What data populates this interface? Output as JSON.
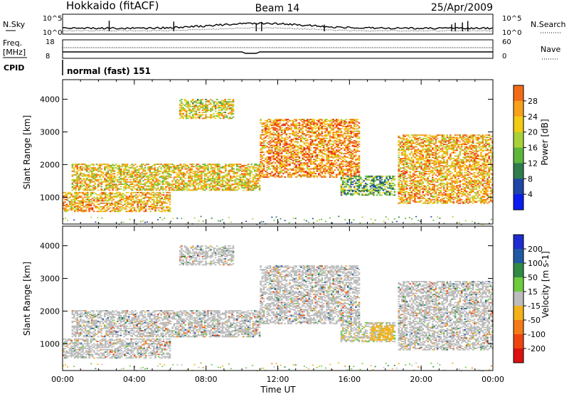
{
  "header": {
    "station": "Hokkaido (fitACF)",
    "beam": "Beam 14",
    "date": "25/Apr/2009"
  },
  "noise_panel": {
    "left_label": "N.Sky",
    "right_label": "N.Search",
    "ticks_left": [
      "10^5",
      "10^0"
    ],
    "ticks_right": [
      "10^5",
      "10^0"
    ]
  },
  "freq_panel": {
    "left_label_1": "Freq.",
    "left_label_2": "[MHz]",
    "ticks_left": [
      "18",
      "8"
    ],
    "right_label": "Nave",
    "ticks_right": [
      "60",
      "0"
    ]
  },
  "cpid_panel": {
    "left_label": "CPID",
    "mode_text": "normal (fast) 151"
  },
  "colors": {
    "power": [
      "#0b1cf0",
      "#1e46a6",
      "#2f7d4c",
      "#5fb63c",
      "#a9d23a",
      "#f2cc12",
      "#f7a11a",
      "#f46b17",
      "#e83212"
    ],
    "velocity": [
      "#1d2cd1",
      "#2059a3",
      "#2f8a44",
      "#6ccc3c",
      "#bcbcbc",
      "#f3b21b",
      "#f47b16",
      "#ef4410",
      "#dd1111"
    ]
  },
  "chart_data": [
    {
      "type": "heatmap",
      "panel": "power",
      "ylabel": "Slant Range [km]",
      "y_ticks": [
        "1000",
        "2000",
        "3000",
        "4000"
      ],
      "ylim": [
        180,
        4600
      ],
      "xlim": [
        "00:00",
        "24:00"
      ],
      "colorbar_label": "Power [dB]",
      "colorbar_ticks": [
        "4",
        "8",
        "12",
        "16",
        "20",
        "24",
        "28"
      ],
      "colorbar_range": [
        0,
        32
      ],
      "echo_regions": [
        {
          "name": "nightside low-range band",
          "t_start": 0.0,
          "t_end": 6.0,
          "r_from": 550,
          "r_to": 1150,
          "level": 22
        },
        {
          "name": "rising arc",
          "t_start": 0.5,
          "t_end": 11.0,
          "r_from": 1200,
          "r_to": 2000,
          "level": 20
        },
        {
          "name": "morning high-range patch",
          "t_start": 6.5,
          "t_end": 9.5,
          "r_from": 3400,
          "r_to": 4000,
          "level": 18
        },
        {
          "name": "daytime arc",
          "t_start": 11.0,
          "t_end": 16.5,
          "r_from": 1600,
          "r_to": 3400,
          "level": 24
        },
        {
          "name": "afternoon low patch",
          "t_start": 15.5,
          "t_end": 18.5,
          "r_from": 1050,
          "r_to": 1650,
          "level": 12
        },
        {
          "name": "evening descending band",
          "t_start": 18.7,
          "t_end": 24.0,
          "r_from": 800,
          "r_to": 2900,
          "level": 22
        }
      ]
    },
    {
      "type": "heatmap",
      "panel": "velocity",
      "ylabel": "Slant Range [km]",
      "xlabel": "Time UT",
      "y_ticks": [
        "1000",
        "2000",
        "3000",
        "4000"
      ],
      "x_ticks": [
        "00:00",
        "04:00",
        "08:00",
        "12:00",
        "16:00",
        "20:00",
        "00:00"
      ],
      "ylim": [
        180,
        4600
      ],
      "xlim": [
        "00:00",
        "24:00"
      ],
      "colorbar_label": "Velocity [m s-1]",
      "colorbar_ticks": [
        "200",
        "100",
        "50",
        "15",
        "-15",
        "-50",
        "-100",
        "-200"
      ],
      "colorbar_range": [
        -250,
        250
      ],
      "echo_regions": [
        {
          "name": "ground scatter low range",
          "t_start": 0.0,
          "t_end": 6.0,
          "r_from": 550,
          "r_to": 1150,
          "level": 0
        },
        {
          "name": "ground scatter arc",
          "t_start": 0.5,
          "t_end": 16.5,
          "r_from": 1200,
          "r_to": 3400,
          "level": 0
        },
        {
          "name": "afternoon ionospheric patch",
          "t_start": 15.5,
          "t_end": 18.5,
          "r_from": 1050,
          "r_to": 1650,
          "level": 40
        },
        {
          "name": "afternoon negative patch",
          "t_start": 17.2,
          "t_end": 18.4,
          "r_from": 1100,
          "r_to": 1550,
          "level": -40
        },
        {
          "name": "evening ground scatter",
          "t_start": 18.7,
          "t_end": 24.0,
          "r_from": 800,
          "r_to": 2900,
          "level": 0
        }
      ]
    }
  ]
}
